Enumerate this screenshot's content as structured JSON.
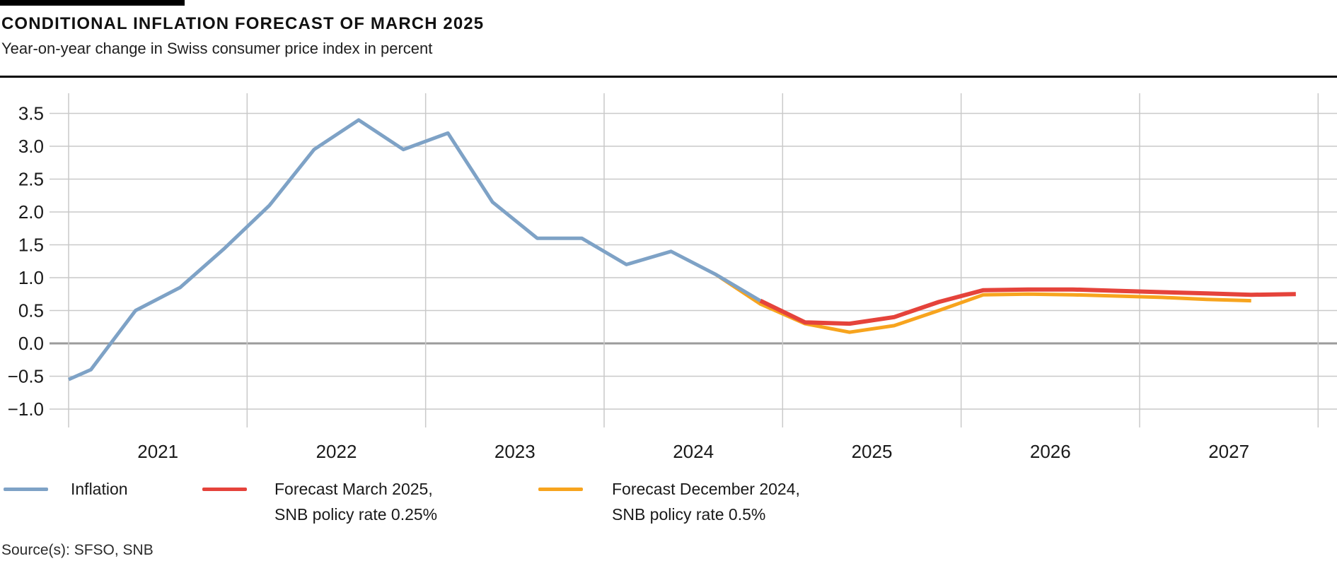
{
  "header": {
    "title": "CONDITIONAL INFLATION FORECAST OF MARCH 2025",
    "subtitle": "Year-on-year change in Swiss consumer price index in percent"
  },
  "source_note": "Source(s): SFSO, SNB",
  "legend": {
    "items": [
      {
        "label": "Inflation",
        "color": "#7EA2C6"
      },
      {
        "label": "Forecast March 2025,\nSNB policy rate 0.25%",
        "color": "#E5433B"
      },
      {
        "label": "Forecast December 2024,\nSNB policy rate 0.5%",
        "color": "#F7A41E"
      }
    ]
  },
  "chart_data": {
    "type": "line",
    "title": "CONDITIONAL INFLATION FORECAST OF MARCH 2025",
    "subtitle": "Year-on-year change in Swiss consumer price index in percent",
    "xlabel": "",
    "ylabel": "",
    "x_axis": {
      "years": [
        2021,
        2022,
        2023,
        2024,
        2025,
        2026,
        2027
      ],
      "boundaries": [
        2021,
        2022,
        2023,
        2024,
        2025,
        2026,
        2027,
        2028
      ],
      "range": [
        2021.0,
        2028.0
      ]
    },
    "y_axis": {
      "ticks": [
        3.5,
        3.0,
        2.5,
        2.0,
        1.5,
        1.0,
        0.5,
        0.0,
        -0.5,
        -1.0
      ],
      "range": [
        -1.0,
        3.5
      ],
      "unit": "percent"
    },
    "grid": true,
    "legend_position": "bottom",
    "colors": {
      "grid": "#c9c9c9",
      "zero_line": "#9b9b9b",
      "tick_text": "#1a1a1a"
    },
    "series": [
      {
        "name": "Inflation",
        "color": "#7EA2C6",
        "points": [
          [
            2021.0,
            -0.55
          ],
          [
            2021.125,
            -0.4
          ],
          [
            2021.375,
            0.5
          ],
          [
            2021.625,
            0.85
          ],
          [
            2021.875,
            1.45
          ],
          [
            2022.125,
            2.1
          ],
          [
            2022.375,
            2.95
          ],
          [
            2022.625,
            3.4
          ],
          [
            2022.875,
            2.95
          ],
          [
            2023.125,
            3.2
          ],
          [
            2023.375,
            2.15
          ],
          [
            2023.625,
            1.6
          ],
          [
            2023.875,
            1.6
          ],
          [
            2024.125,
            1.2
          ],
          [
            2024.375,
            1.4
          ],
          [
            2024.625,
            1.05
          ],
          [
            2024.875,
            0.65
          ]
        ]
      },
      {
        "name": "Forecast December 2024, SNB policy rate 0.5%",
        "color": "#F7A41E",
        "points": [
          [
            2024.625,
            1.05
          ],
          [
            2024.875,
            0.6
          ],
          [
            2025.125,
            0.3
          ],
          [
            2025.375,
            0.17
          ],
          [
            2025.625,
            0.27
          ],
          [
            2025.875,
            0.5
          ],
          [
            2026.125,
            0.74
          ],
          [
            2026.375,
            0.75
          ],
          [
            2026.625,
            0.74
          ],
          [
            2026.875,
            0.72
          ],
          [
            2027.125,
            0.7
          ],
          [
            2027.375,
            0.67
          ],
          [
            2027.625,
            0.65
          ]
        ]
      },
      {
        "name": "Forecast March 2025, SNB policy rate 0.25%",
        "color": "#E5433B",
        "points": [
          [
            2024.875,
            0.65
          ],
          [
            2025.125,
            0.32
          ],
          [
            2025.375,
            0.3
          ],
          [
            2025.625,
            0.4
          ],
          [
            2025.875,
            0.63
          ],
          [
            2026.125,
            0.81
          ],
          [
            2026.375,
            0.82
          ],
          [
            2026.625,
            0.82
          ],
          [
            2026.875,
            0.8
          ],
          [
            2027.125,
            0.78
          ],
          [
            2027.375,
            0.76
          ],
          [
            2027.625,
            0.74
          ],
          [
            2027.875,
            0.75
          ]
        ]
      }
    ]
  }
}
